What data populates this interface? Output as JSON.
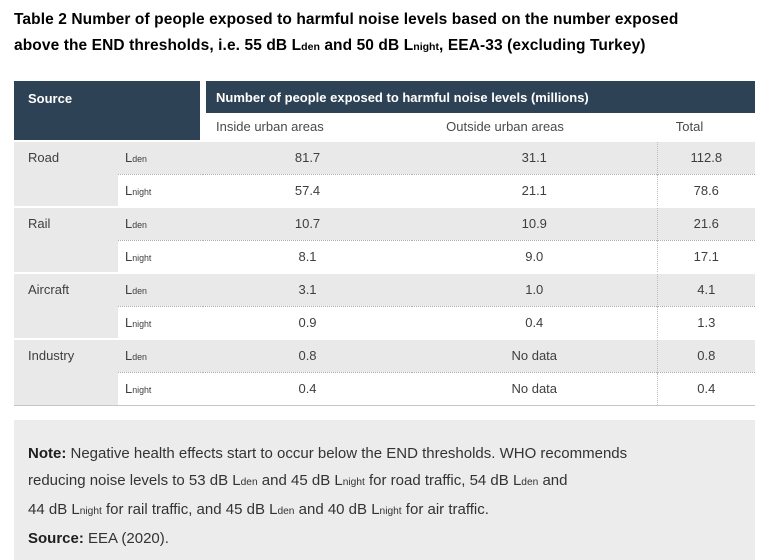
{
  "title": "Table 2 Number of people exposed to harmful noise levels based on the number exposed\nabove the END thresholds, i.e. 55 dB L~den~ and 50 dB L~night~, EEA-33 (excluding Turkey)",
  "table": {
    "header": {
      "source_label": "Source",
      "main_label": "Number of people exposed to harmful noise levels (millions)",
      "columns": [
        "Inside urban areas",
        "Outside urban areas",
        "Total"
      ]
    },
    "groups": [
      {
        "source": "Road",
        "rows": [
          {
            "indicator": "L~den~",
            "inside": "81.7",
            "outside": "31.1",
            "total": "112.8"
          },
          {
            "indicator": "L~night~",
            "inside": "57.4",
            "outside": "21.1",
            "total": "78.6"
          }
        ]
      },
      {
        "source": "Rail",
        "rows": [
          {
            "indicator": "L~den~",
            "inside": "10.7",
            "outside": "10.9",
            "total": "21.6"
          },
          {
            "indicator": "L~night~",
            "inside": "8.1",
            "outside": "9.0",
            "total": "17.1"
          }
        ]
      },
      {
        "source": "Aircraft",
        "rows": [
          {
            "indicator": "L~den~",
            "inside": "3.1",
            "outside": "1.0",
            "total": "4.1"
          },
          {
            "indicator": "L~night~",
            "inside": "0.9",
            "outside": "0.4",
            "total": "1.3"
          }
        ]
      },
      {
        "source": "Industry",
        "rows": [
          {
            "indicator": "L~den~",
            "inside": "0.8",
            "outside": "No data",
            "total": "0.8"
          },
          {
            "indicator": "L~night~",
            "inside": "0.4",
            "outside": "No data",
            "total": "0.4"
          }
        ]
      }
    ]
  },
  "note": {
    "label": "Note:",
    "text": "Negative health effects start to occur below the END thresholds. WHO recommends\nreducing noise levels to 53 dB L~den~ and 45 dB L~night~ for road traffic, 54 dB L~den~ and\n44 dB L~night~ for rail traffic, and 45 dB L~den~ and 40 dB L~night~ for air traffic.",
    "source_label": "Source:",
    "source_text": "EEA (2020)."
  },
  "colors": {
    "header_bg": "#2d4254",
    "header_text": "#ffffff",
    "row_alt_bg": "#e9e9e9",
    "note_bg": "#ececec",
    "body_text": "#3e3e3e"
  }
}
